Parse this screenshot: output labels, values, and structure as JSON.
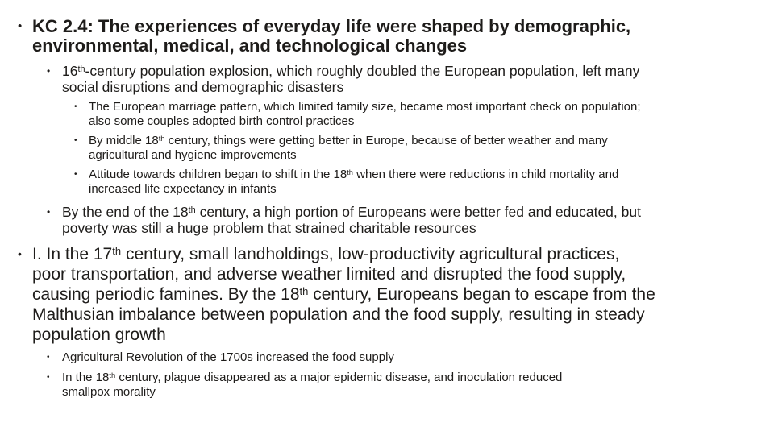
{
  "slide": {
    "background_color": "#ffffff",
    "text_color": "#1e1c1a",
    "bullet_glyph": "•",
    "bullets": [
      {
        "name": "slide-title",
        "style": "t",
        "segments": [
          {
            "t": "KC 2.4: The experiences of everyday life were shaped by demographic,"
          },
          {
            "br": true
          },
          {
            "t": "environmental, medical, and technological changes"
          }
        ]
      },
      {
        "name": "bullet-population-explosion",
        "style": "a",
        "segments": [
          {
            "t": "16"
          },
          {
            "t": "th",
            "sup": true
          },
          {
            "t": "-century population explosion, which roughly doubled the European population, left many"
          },
          {
            "br": true
          },
          {
            "t": "social disruptions and demographic disasters"
          }
        ]
      },
      {
        "name": "bullet-marriage-pattern",
        "style": "b",
        "segments": [
          {
            "t": "The European marriage pattern, which limited family size, became most important check on population;"
          },
          {
            "br": true
          },
          {
            "t": "also some couples adopted birth control practices"
          }
        ]
      },
      {
        "name": "bullet-better-by-middle-18th",
        "style": "b",
        "segments": [
          {
            "t": "By middle 18"
          },
          {
            "t": "th",
            "sup": true
          },
          {
            "t": " century, things were getting better in Europe, because of better weather and many"
          },
          {
            "br": true
          },
          {
            "t": "agricultural and hygiene improvements"
          }
        ]
      },
      {
        "name": "bullet-attitude-children",
        "style": "b",
        "segments": [
          {
            "t": "Attitude towards children began to shift in the 18"
          },
          {
            "t": "th",
            "sup": true
          },
          {
            "t": " when there were reductions in child mortality and"
          },
          {
            "br": true
          },
          {
            "t": "increased life expectancy in infants"
          }
        ]
      },
      {
        "name": "bullet-end-of-18th-century",
        "style": "a",
        "segments": [
          {
            "t": "By the end of the 18"
          },
          {
            "t": "th",
            "sup": true
          },
          {
            "t": " century, a high portion of Europeans were better fed and educated, but"
          },
          {
            "br": true
          },
          {
            "t": "poverty was still a huge problem that strained charitable resources"
          }
        ]
      },
      {
        "name": "bullet-17th-century-famines",
        "style": "big",
        "segments": [
          {
            "t": "I. In the 17"
          },
          {
            "t": "th",
            "sup": true
          },
          {
            "t": " century, small landholdings, low-productivity agricultural practices,"
          },
          {
            "br": true
          },
          {
            "t": "poor transportation, and adverse weather limited and disrupted the food supply,"
          },
          {
            "br": true
          },
          {
            "t": "causing periodic famines. By the 18"
          },
          {
            "t": "th",
            "sup": true
          },
          {
            "t": " century, Europeans began to escape from the"
          },
          {
            "br": true
          },
          {
            "t": "Malthusian imbalance between population and the food supply, resulting in steady"
          },
          {
            "br": true
          },
          {
            "t": "population growth"
          }
        ]
      },
      {
        "name": "bullet-agricultural-revolution",
        "style": "c",
        "segments": [
          {
            "t": "Agricultural Revolution of the 1700s increased the food supply"
          }
        ]
      },
      {
        "name": "bullet-plague-inoculation",
        "style": "c",
        "segments": [
          {
            "t": "In the 18"
          },
          {
            "t": "th",
            "sup": true
          },
          {
            "t": " century, plague disappeared as a major epidemic disease, and inoculation reduced"
          },
          {
            "br": true
          },
          {
            "t": "smallpox morality"
          }
        ]
      }
    ]
  }
}
